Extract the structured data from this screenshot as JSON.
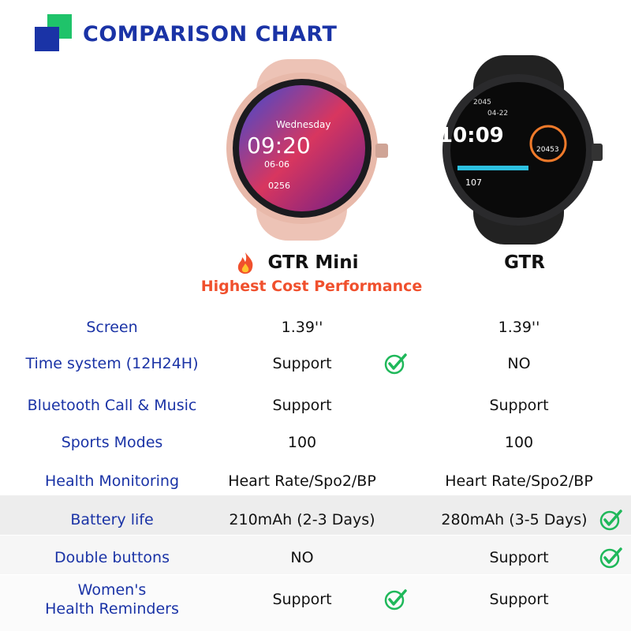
{
  "header": {
    "title": "COMPARISON CHART"
  },
  "products": [
    {
      "name": "GTR Mini",
      "tagline": "Highest Cost Performance",
      "screen": [
        "Wednesday",
        "09:20",
        "06-06",
        "0256"
      ]
    },
    {
      "name": "GTR",
      "screen": [
        "2045",
        "04-22",
        "10:09",
        "20453",
        "107"
      ]
    }
  ],
  "table": {
    "rows": [
      {
        "label": "Screen",
        "values": [
          "1.39''",
          "1.39''"
        ],
        "checks": [
          false,
          false
        ]
      },
      {
        "label": "Time system (12H24H)",
        "values": [
          "Support",
          "NO"
        ],
        "checks": [
          true,
          false
        ]
      },
      {
        "label": "Bluetooth Call & Music",
        "values": [
          "Support",
          "Support"
        ],
        "checks": [
          false,
          false
        ]
      },
      {
        "label": "Sports Modes",
        "values": [
          "100",
          "100"
        ],
        "checks": [
          false,
          false
        ]
      },
      {
        "label": "Health Monitoring",
        "values": [
          "Heart Rate/Spo2/BP",
          "Heart Rate/Spo2/BP"
        ],
        "checks": [
          false,
          false
        ]
      },
      {
        "label": "Battery life",
        "values": [
          "210mAh (2-3 Days)",
          "280mAh (3-5 Days)"
        ],
        "checks": [
          false,
          true
        ]
      },
      {
        "label": "Double buttons",
        "values": [
          "NO",
          "Support"
        ],
        "checks": [
          false,
          true
        ]
      },
      {
        "label": "Women's\nHealth Reminders",
        "values": [
          "Support",
          "Support"
        ],
        "checks": [
          true,
          false
        ]
      }
    ]
  }
}
